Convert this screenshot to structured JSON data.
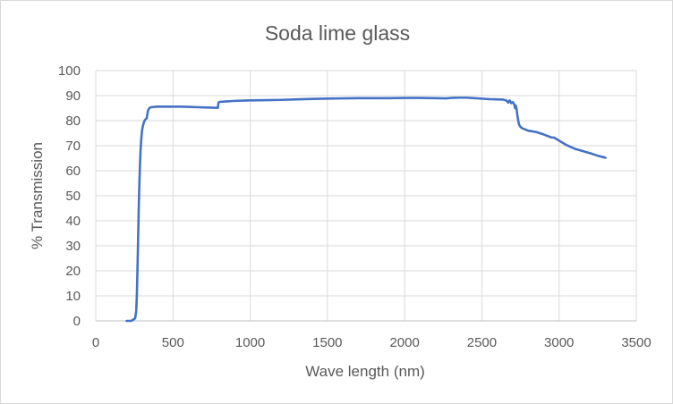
{
  "chart_data": {
    "type": "line",
    "title": "Soda lime glass",
    "xlabel": "Wave length (nm)",
    "ylabel": "% Transmission",
    "xlim": [
      0,
      3500
    ],
    "ylim": [
      0,
      100
    ],
    "xticks": [
      0,
      500,
      1000,
      1500,
      2000,
      2500,
      3000,
      3500
    ],
    "yticks": [
      0,
      10,
      20,
      30,
      40,
      50,
      60,
      70,
      80,
      90,
      100
    ],
    "grid": true,
    "legend": "none",
    "colors": {
      "series": "#4472c4"
    },
    "series": [
      {
        "name": "",
        "x": [
          200,
          230,
          255,
          262,
          266,
          270,
          274,
          278,
          282,
          286,
          290,
          294,
          298,
          302,
          306,
          310,
          316,
          322,
          330,
          338,
          345,
          350,
          360,
          380,
          400,
          450,
          500,
          550,
          600,
          650,
          700,
          750,
          790,
          795,
          800,
          850,
          900,
          1000,
          1100,
          1200,
          1300,
          1400,
          1500,
          1600,
          1700,
          1800,
          1900,
          2000,
          2100,
          2200,
          2270,
          2300,
          2350,
          2400,
          2450,
          2500,
          2550,
          2600,
          2640,
          2660,
          2670,
          2680,
          2690,
          2700,
          2710,
          2715,
          2720,
          2725,
          2730,
          2740,
          2750,
          2760,
          2780,
          2800,
          2850,
          2900,
          2950,
          2970,
          3000,
          3050,
          3100,
          3150,
          3200,
          3250,
          3300
        ],
        "y": [
          0,
          0,
          1,
          4,
          10,
          20,
          32,
          44,
          54,
          62,
          68,
          72,
          75,
          77,
          78,
          79,
          80,
          80.5,
          81,
          84,
          84.8,
          85.2,
          85.4,
          85.5,
          85.6,
          85.6,
          85.6,
          85.6,
          85.5,
          85.4,
          85.3,
          85.2,
          85.1,
          87.2,
          87.5,
          87.7,
          87.9,
          88.1,
          88.2,
          88.3,
          88.5,
          88.7,
          88.8,
          88.9,
          89,
          89,
          89,
          89.1,
          89.1,
          89,
          88.9,
          89.1,
          89.2,
          89.2,
          89,
          88.8,
          88.6,
          88.5,
          88.4,
          88,
          87.2,
          88.1,
          87,
          87.4,
          86.5,
          85,
          86,
          84.5,
          82,
          78.5,
          77.5,
          77,
          76.5,
          76,
          75.5,
          74.5,
          73.3,
          73.2,
          72,
          70.2,
          68.8,
          67.9,
          67.0,
          66.0,
          65.2
        ]
      }
    ]
  }
}
